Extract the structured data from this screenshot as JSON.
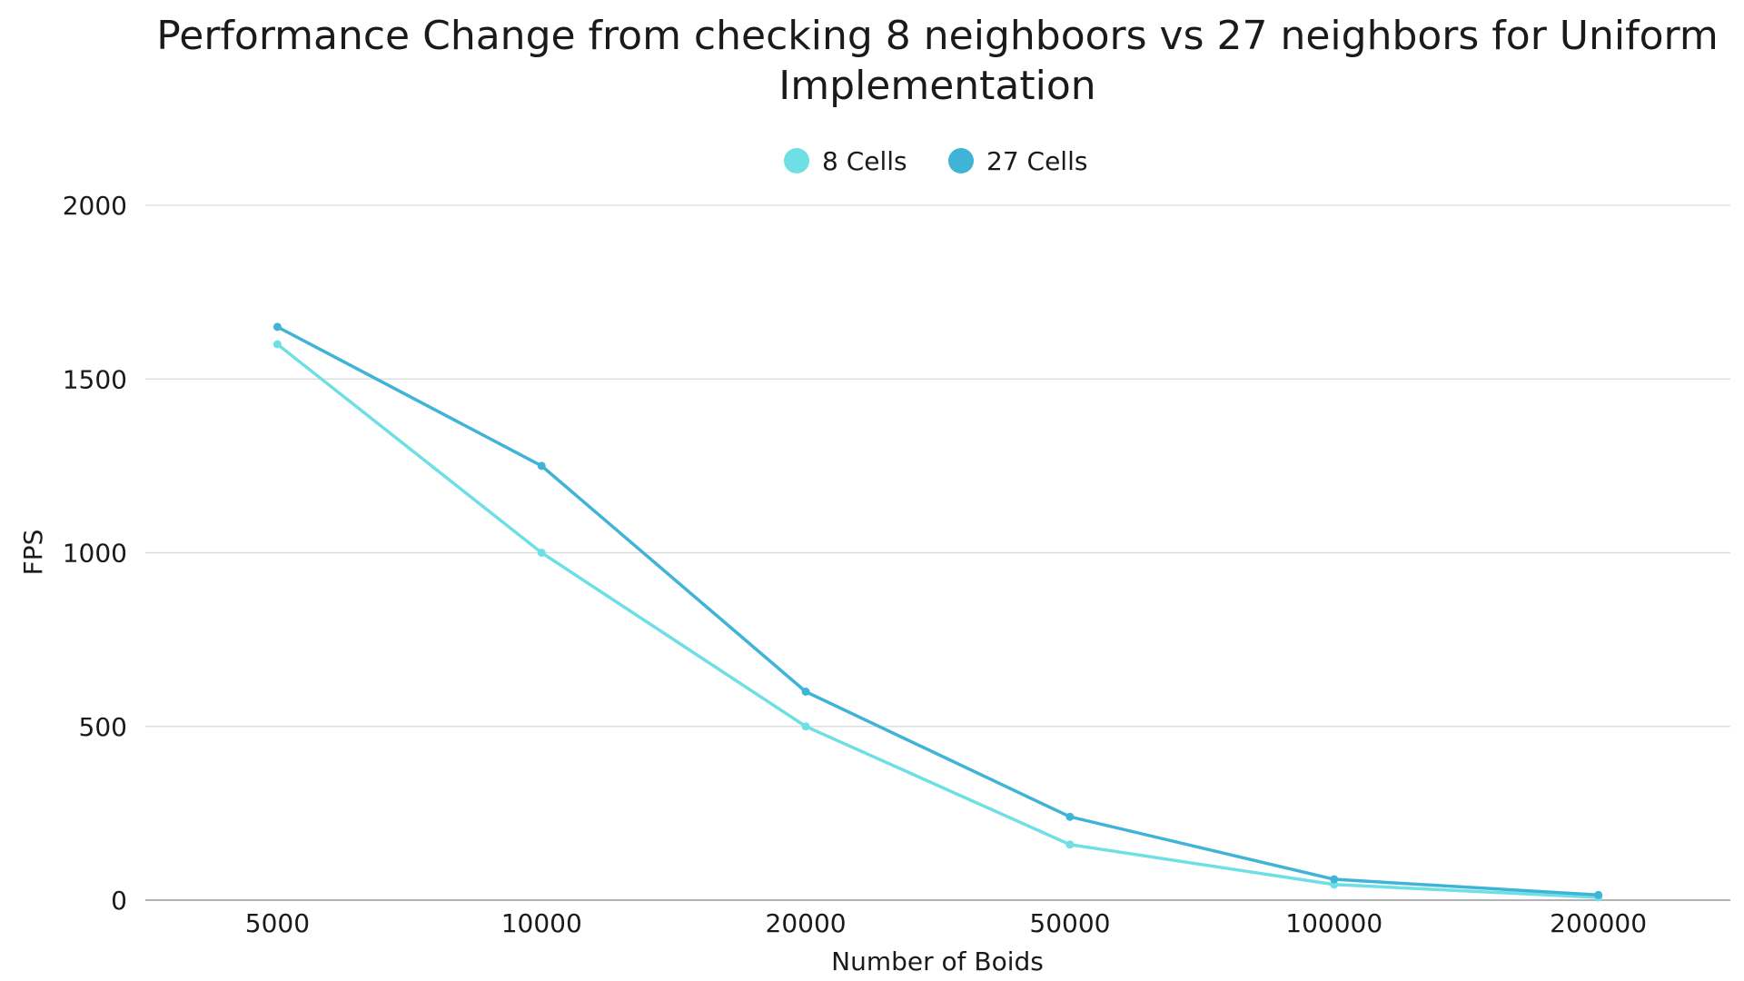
{
  "chart_data": {
    "type": "line",
    "title_lines": [
      "Performance Change from checking 8 neighboors vs 27 neighbors for Uniform",
      "Implementation"
    ],
    "xlabel": "Number of Boids",
    "ylabel": "FPS",
    "categories": [
      "5000",
      "10000",
      "20000",
      "50000",
      "100000",
      "200000"
    ],
    "ylim": [
      0,
      2000
    ],
    "yticks": [
      "0",
      "500",
      "1000",
      "1500",
      "2000"
    ],
    "grid": true,
    "legend_position": "top-center",
    "series": [
      {
        "name": "8 Cells",
        "color": "#6ee0e5",
        "values": [
          1600,
          1000,
          500,
          160,
          45,
          8
        ]
      },
      {
        "name": "27 Cells",
        "color": "#3fb4d6",
        "values": [
          1650,
          1250,
          600,
          240,
          60,
          15
        ]
      }
    ]
  }
}
